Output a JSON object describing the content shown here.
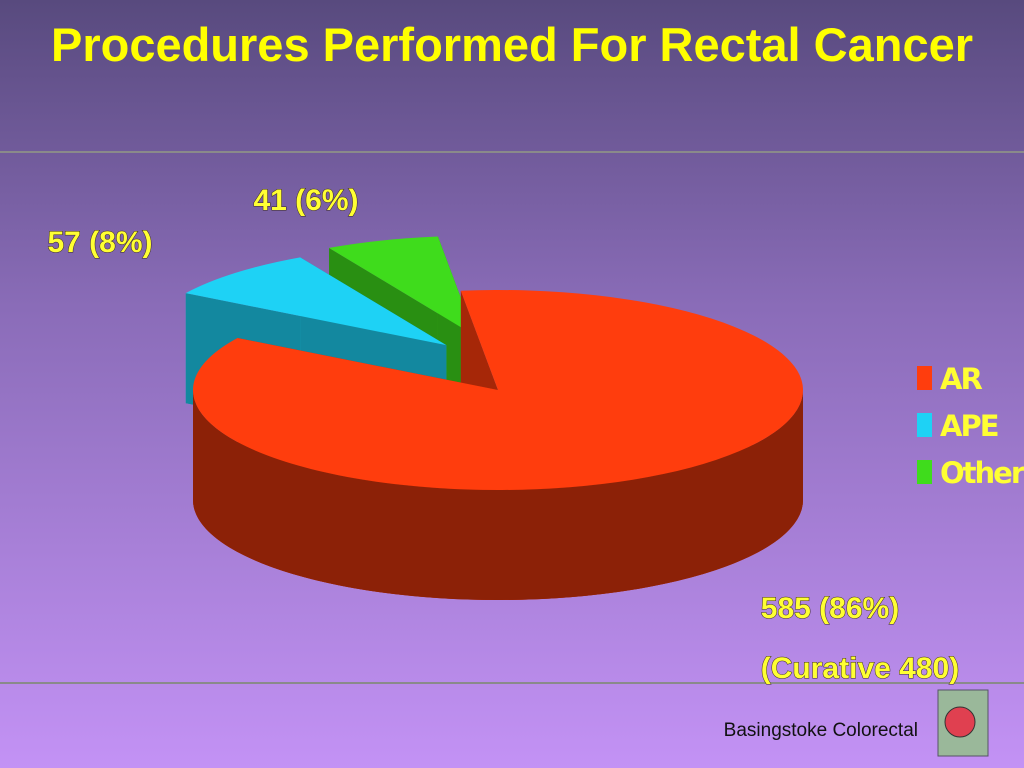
{
  "chart_data": {
    "type": "pie",
    "title": "Procedures Performed For Rectal Cancer",
    "categories": [
      "AR",
      "APE",
      "Other"
    ],
    "values": [
      585,
      57,
      41
    ],
    "value_labels": [
      "585 (86%)",
      "57 (8%)",
      "41 (6%)"
    ],
    "colors": [
      "#ff3d0d",
      "#1ed2f5",
      "#3fdc1c"
    ],
    "annotation": "(Curative 480)",
    "legend": "right"
  },
  "footer": "Basingstoke Colorectal"
}
